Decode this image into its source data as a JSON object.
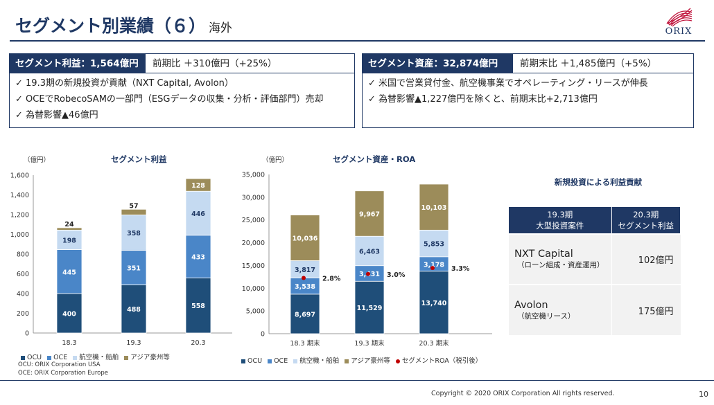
{
  "header": {
    "title": "セグメント別業績（６）",
    "subtitle": "海外",
    "logo_text": "ORIX"
  },
  "profit_box": {
    "label": "セグメント利益：1,564億円",
    "compare": "前期比 ＋310億円（+25%）",
    "bullets": [
      "✓ 19.3期の新規投資が貢献（NXT Capital, Avolon）",
      "✓ OCEでRobecoSAMの一部門（ESGデータの収集・分析・評価部門）売却",
      "✓ 為替影響▲46億円"
    ]
  },
  "asset_box": {
    "label": "セグメント資産：32,874億円",
    "compare": "前期末比 ＋1,485億円（+5%）",
    "bullets": [
      "✓ 米国で営業貸付金、航空機事業でオペレーティング・リースが伸長",
      "✓ 為替影響▲1,227億円を除くと、前期末比+2,713億円"
    ]
  },
  "colors": {
    "navy": "#1f4e79",
    "mid_blue": "#4a86c8",
    "light_blue": "#c5daf1",
    "olive": "#9c8c5a",
    "roa_dot": "#c00000",
    "brand": "#1f3864"
  },
  "chart_data": [
    {
      "type": "bar",
      "stacked": true,
      "title": "セグメント利益",
      "unit": "（億円）",
      "categories": [
        "18.3",
        "19.3",
        "20.3"
      ],
      "series": [
        {
          "name": "OCU",
          "values": [
            400,
            488,
            558
          ]
        },
        {
          "name": "OCE",
          "values": [
            445,
            351,
            433
          ]
        },
        {
          "name": "航空機・船舶",
          "values": [
            198,
            358,
            446
          ]
        },
        {
          "name": "アジア豪州等",
          "values": [
            24,
            57,
            128
          ]
        }
      ],
      "ylim": [
        0,
        1600
      ],
      "yticks": [
        "0",
        "200",
        "400",
        "600",
        "800",
        "1,000",
        "1,200",
        "1,400",
        "1,600"
      ],
      "value_labels": [
        [
          "400",
          "488",
          "558"
        ],
        [
          "445",
          "351",
          "433"
        ],
        [
          "198",
          "358",
          "446"
        ],
        [
          "24",
          "57",
          "128"
        ]
      ],
      "legend": [
        "OCU",
        "OCE",
        "航空機・船舶",
        "アジア豪州等"
      ]
    },
    {
      "type": "bar",
      "stacked": true,
      "title": "セグメント資産・ROA",
      "unit": "（億円）",
      "categories": [
        "18.3 期末",
        "19.3 期末",
        "20.3 期末"
      ],
      "series": [
        {
          "name": "OCU",
          "values": [
            8697,
            11529,
            13740
          ]
        },
        {
          "name": "OCE",
          "values": [
            3538,
            3431,
            3178
          ]
        },
        {
          "name": "航空機・船舶",
          "values": [
            3817,
            6463,
            5853
          ]
        },
        {
          "name": "アジア豪州等",
          "values": [
            10036,
            9967,
            10103
          ]
        }
      ],
      "roa": {
        "name": "セグメントROA（税引後）",
        "values": [
          2.8,
          3.0,
          3.3
        ],
        "labels": [
          "2.8%",
          "3.0%",
          "3.3%"
        ]
      },
      "ylim": [
        0,
        35000
      ],
      "yticks": [
        "0",
        "5,000",
        "10,000",
        "15,000",
        "20,000",
        "25,000",
        "30,000",
        "35,000"
      ],
      "value_labels": [
        [
          "8,697",
          "11,529",
          "13,740"
        ],
        [
          "3,538",
          "3,431",
          "3,178"
        ],
        [
          "3,817",
          "6,463",
          "5,853"
        ],
        [
          "10,036",
          "9,967",
          "10,103"
        ]
      ],
      "legend": [
        "OCU",
        "OCE",
        "航空機・船舶",
        "アジア豪州等",
        "セグメントROA（税引後）"
      ]
    }
  ],
  "notes": [
    "OCU: ORIX Corporation USA",
    "OCE: ORIX Corporation Europe"
  ],
  "investment_table": {
    "title": "新規投資による利益貢献",
    "col1": "19.3期\n大型投資案件",
    "col1_l1": "19.3期",
    "col1_l2": "大型投資案件",
    "col2_l1": "20.3期",
    "col2_l2": "セグメント利益",
    "rows": [
      {
        "name": "NXT Capital",
        "sub": "（ローン組成・資産運用）",
        "value": "102億円"
      },
      {
        "name": "Avolon",
        "sub": "（航空機リース）",
        "value": "175億円"
      }
    ]
  },
  "footer": {
    "copyright": "Copyright © 2020 ORIX Corporation All rights reserved.",
    "page": "10"
  }
}
